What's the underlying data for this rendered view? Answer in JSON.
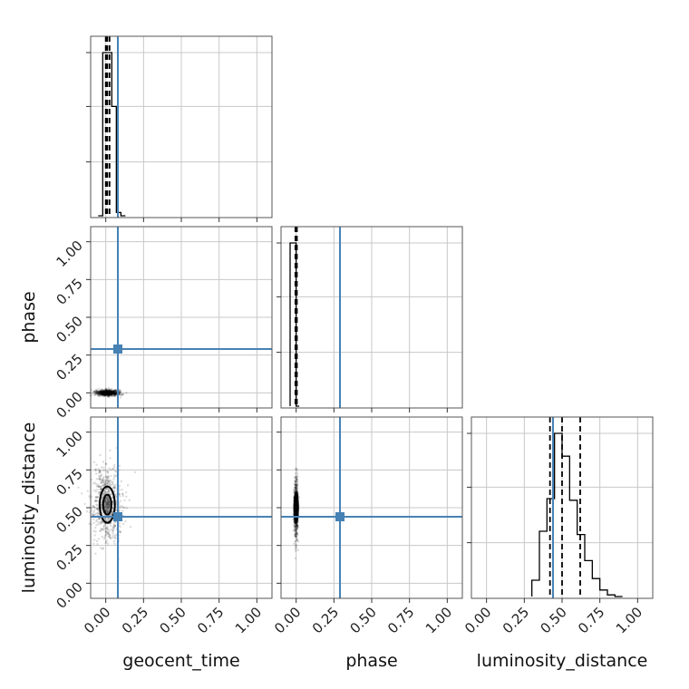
{
  "chart_data": {
    "type": "corner",
    "parameters": [
      "geocent_time",
      "phase",
      "luminosity_distance"
    ],
    "axis_range": [
      -0.1,
      1.1
    ],
    "tick_values": [
      0.0,
      0.25,
      0.5,
      0.75,
      1.0
    ],
    "tick_labels": [
      "0.00",
      "0.25",
      "0.50",
      "0.75",
      "1.00"
    ],
    "grid": true,
    "truth_color": "#4682b4",
    "truths": {
      "geocent_time": 0.08,
      "phase": 0.29,
      "luminosity_distance": 0.44
    },
    "marginals": {
      "geocent_time": {
        "bin_edges": [
          -0.05,
          -0.02,
          0.01,
          0.04,
          0.07,
          0.1,
          0.13
        ],
        "counts": [
          0,
          1.0,
          1.0,
          0.67,
          0.02,
          0
        ],
        "quantiles": [
          0.0,
          0.01,
          0.025
        ]
      },
      "phase": {
        "bin_edges": [
          -0.04,
          -0.02,
          0.0,
          0.02
        ],
        "counts": [
          1.0,
          1.0,
          0
        ],
        "quantiles": [
          -0.005,
          0.0,
          0.005
        ]
      },
      "luminosity_distance": {
        "bin_edges": [
          0.3,
          0.35,
          0.4,
          0.45,
          0.5,
          0.55,
          0.6,
          0.65,
          0.7,
          0.75,
          0.8,
          0.85,
          0.9
        ],
        "counts": [
          0.1,
          0.4,
          0.6,
          1.0,
          0.86,
          0.59,
          0.38,
          0.22,
          0.11,
          0.04,
          0.01,
          0
        ],
        "quantiles": [
          0.42,
          0.5,
          0.62
        ]
      }
    },
    "joint": {
      "phase_vs_geocent_time": {
        "x_center": 0.01,
        "y_center": 0.0,
        "x_spread": 0.04,
        "y_spread": 0.01
      },
      "luminosity_distance_vs_geocent_time": {
        "x_center": 0.01,
        "y_center": 0.52,
        "x_spread": 0.05,
        "y_spread": 0.12
      },
      "luminosity_distance_vs_phase": {
        "x_center": 0.0,
        "y_center": 0.5,
        "x_spread": 0.006,
        "y_spread": 0.1
      }
    }
  }
}
